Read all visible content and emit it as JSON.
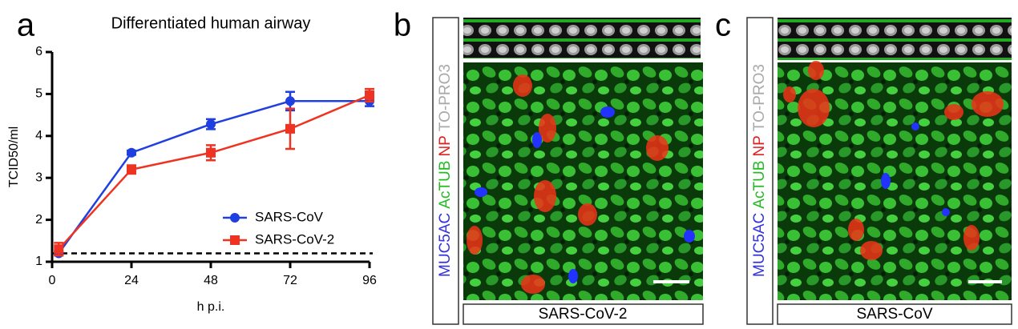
{
  "panels": [
    {
      "letter": "a",
      "chart_data": {
        "type": "line",
        "title": "Differentiated human airway",
        "x_label": "h p.i.",
        "y_label": "TCID50/ml",
        "x": [
          2,
          24,
          48,
          72,
          96
        ],
        "series": [
          {
            "name": "SARS-CoV",
            "color": "#1f3fe0",
            "marker": "circle",
            "values": [
              1.2,
              3.6,
              4.28,
              4.83,
              4.83
            ],
            "errors": [
              0.05,
              0.05,
              0.12,
              0.22,
              0.12
            ]
          },
          {
            "name": "SARS-CoV-2",
            "color": "#ee3322",
            "marker": "square",
            "values": [
              1.3,
              3.2,
              3.6,
              4.17,
              4.97
            ],
            "errors": [
              0.15,
              0.1,
              0.18,
              0.48,
              0.15
            ]
          }
        ],
        "reference_line": 1.2,
        "xlim": [
          0,
          96
        ],
        "xticks": [
          0,
          24,
          48,
          72,
          96
        ],
        "ylim": [
          1,
          6
        ],
        "yticks": [
          1,
          2,
          3,
          4,
          5,
          6
        ]
      }
    },
    {
      "letter": "b",
      "stains": [
        {
          "text": "MUC5AC",
          "color": "#3333dd"
        },
        {
          "text": "AcTUB",
          "color": "#22bb22"
        },
        {
          "text": "NP",
          "color": "#dd2222"
        },
        {
          "text": "TO-PRO3",
          "color": "#aaaaaa"
        }
      ],
      "condition": "SARS-CoV-2"
    },
    {
      "letter": "c",
      "stains": [
        {
          "text": "MUC5AC",
          "color": "#3333dd"
        },
        {
          "text": "AcTUB",
          "color": "#22bb22"
        },
        {
          "text": "NP",
          "color": "#dd2222"
        },
        {
          "text": "TO-PRO3",
          "color": "#aaaaaa"
        }
      ],
      "condition": "SARS-CoV"
    }
  ]
}
